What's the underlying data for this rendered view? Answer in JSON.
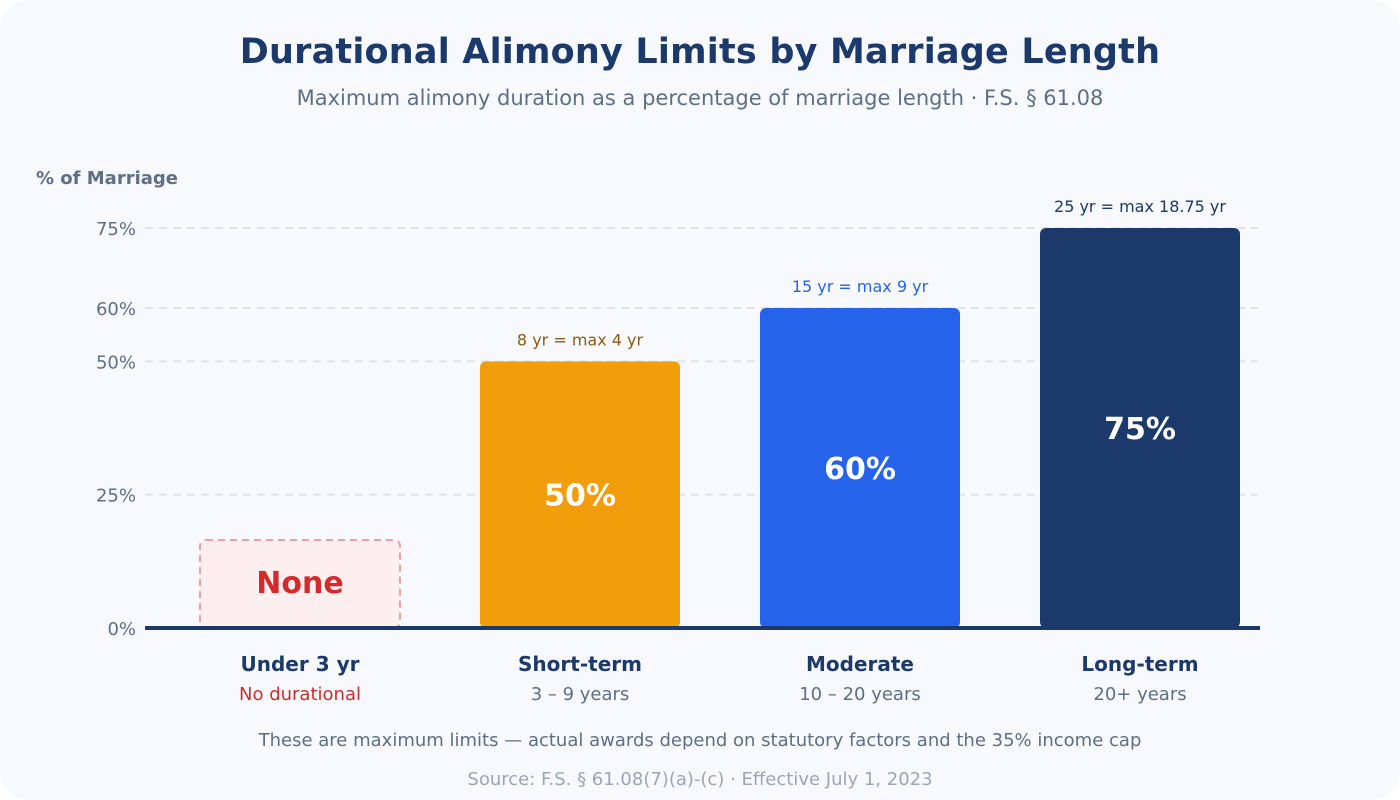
{
  "header": {
    "title": "Durational Alimony Limits by Marriage Length",
    "subtitle": "Maximum alimony duration as a percentage of marriage length · F.S. § 61.08"
  },
  "footer": {
    "note": "These are maximum limits — actual awards depend on statutory factors and the 35% income cap",
    "source": "Source: F.S. § 61.08(7)(a)-(c) · Effective July 1, 2023"
  },
  "chart_data": {
    "type": "bar",
    "title": "Durational Alimony Limits by Marriage Length",
    "subtitle": "Maximum alimony duration as a percentage of marriage length · F.S. § 61.08",
    "ylabel": "% of Marriage",
    "xlabel": "",
    "ylim": [
      0,
      75
    ],
    "yticks": [
      0,
      25,
      50,
      60,
      75
    ],
    "ytick_labels": [
      "0%",
      "25%",
      "50%",
      "60%",
      "75%"
    ],
    "grid": true,
    "legend": "none",
    "categories": [
      "Under 3 yr",
      "Short-term",
      "Moderate",
      "Long-term"
    ],
    "category_sublabels": [
      "No durational",
      "3 – 9 years",
      "10 – 20 years",
      "20+ years"
    ],
    "values": [
      0,
      50,
      60,
      75
    ],
    "bar_labels": [
      "None",
      "50%",
      "60%",
      "75%"
    ],
    "top_annotations": [
      "",
      "8 yr = max 4 yr",
      "15 yr = max 9 yr",
      "25 yr = max 18.75 yr"
    ],
    "colors": [
      "#fdeff0",
      "#f29e0c",
      "#2563eb",
      "#1b3a6b"
    ],
    "label_colors": [
      "#d42a2a",
      "#ffffff",
      "#ffffff",
      "#ffffff"
    ],
    "annotation_colors": [
      "",
      "#8a5a12",
      "#2563eb",
      "#1b3a6b"
    ],
    "sublabel_colors": [
      "#d42a2a",
      "#5d6f86",
      "#5d6f86",
      "#5d6f86"
    ],
    "placeholder_category": "Under 3 yr",
    "placeholder_border_color": "#e9a0a0",
    "axis_color": "#1b3a6b",
    "grid_color": "#dfe5ed"
  }
}
